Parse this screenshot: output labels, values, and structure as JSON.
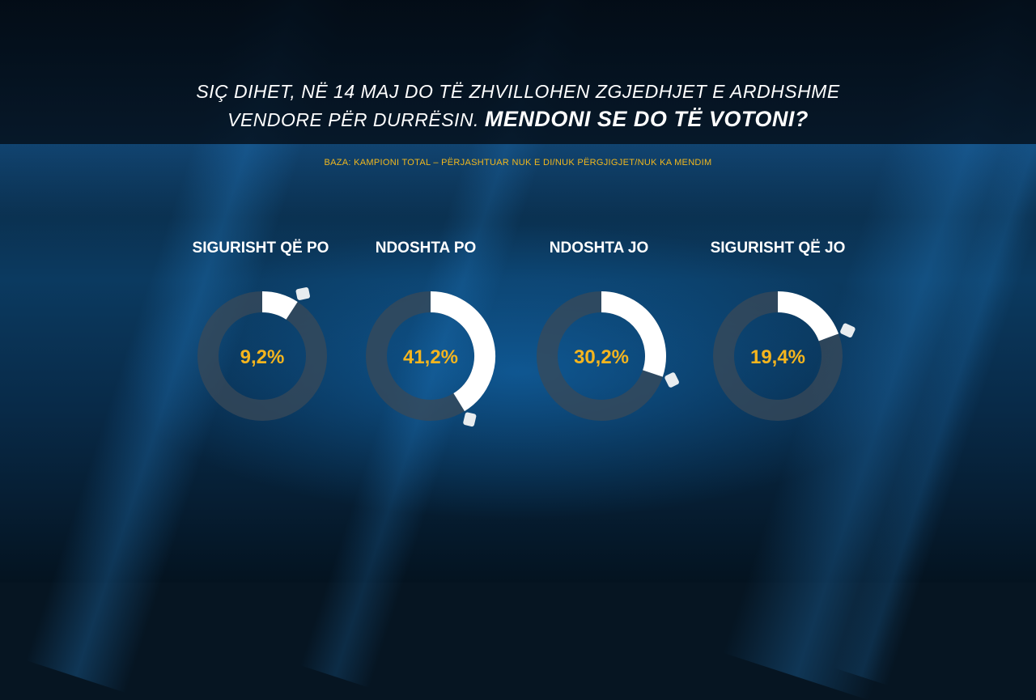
{
  "header": {
    "question_line1": "SIÇ DIHET, NË 14 MAJ DO TË ZHVILLOHEN ZGJEDHJET E ARDHSHME",
    "question_line2_prefix": "VENDORE PËR DURRËSIN. ",
    "question_line2_bold": "MENDONI SE DO TË VOTONI?",
    "base_note": "BAZA: KAMPIONI TOTAL – PËRJASHTUAR NUK E DI/NUK PËRGJIGJET/NUK KA MENDIM"
  },
  "colors": {
    "value_text": "#f5b51e",
    "arc_fill": "#ffffff",
    "ring_track": "#3a4a58"
  },
  "chart_data": {
    "type": "pie",
    "categories": [
      "SIGURISHT QË PO",
      "NDOSHTA PO",
      "NDOSHTA JO",
      "SIGURISHT QË JO"
    ],
    "values": [
      9.2,
      41.2,
      30.2,
      19.4
    ],
    "value_labels": [
      "9,2%",
      "41,2%",
      "30,2%",
      "19,4%"
    ],
    "unit": "%",
    "max": 100
  }
}
